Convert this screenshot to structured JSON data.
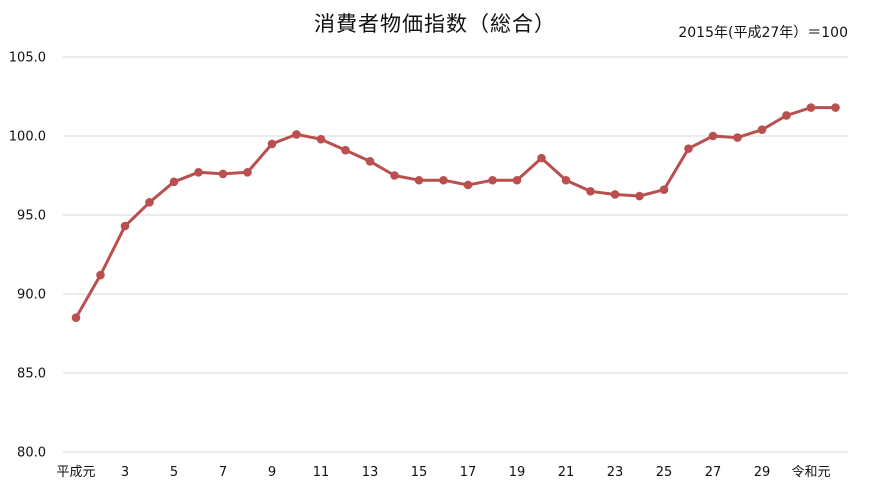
{
  "title": "消費者物価指数（総合）",
  "note": "2015年(平成27年）＝100",
  "colors": {
    "series": "#b9504f",
    "grid": "#d9d9d9",
    "text": "#111111"
  },
  "chart_data": {
    "type": "line",
    "title": "消費者物価指数（総合）",
    "xlabel": "",
    "ylabel": "",
    "ylim": [
      80.0,
      105.0
    ],
    "y_ticks": [
      "80.0",
      "85.0",
      "90.0",
      "95.0",
      "100.0",
      "105.0"
    ],
    "grid": true,
    "x_tick_labels": [
      "平成元",
      "3",
      "5",
      "7",
      "9",
      "11",
      "13",
      "15",
      "17",
      "19",
      "21",
      "23",
      "25",
      "27",
      "29",
      "令和元"
    ],
    "x": [
      "平成元",
      "2",
      "3",
      "4",
      "5",
      "6",
      "7",
      "8",
      "9",
      "10",
      "11",
      "12",
      "13",
      "14",
      "15",
      "16",
      "17",
      "18",
      "19",
      "20",
      "21",
      "22",
      "23",
      "24",
      "25",
      "26",
      "27",
      "28",
      "29",
      "30",
      "令和元",
      "2"
    ],
    "series": [
      {
        "values": [
          88.5,
          91.2,
          94.3,
          95.8,
          97.1,
          97.7,
          97.6,
          97.7,
          99.5,
          100.1,
          99.8,
          99.1,
          98.4,
          97.5,
          97.2,
          97.2,
          96.9,
          97.2,
          97.2,
          98.6,
          97.2,
          96.5,
          96.3,
          96.2,
          96.6,
          99.2,
          100.0,
          99.9,
          100.4,
          101.3,
          101.8,
          101.8
        ]
      }
    ]
  }
}
